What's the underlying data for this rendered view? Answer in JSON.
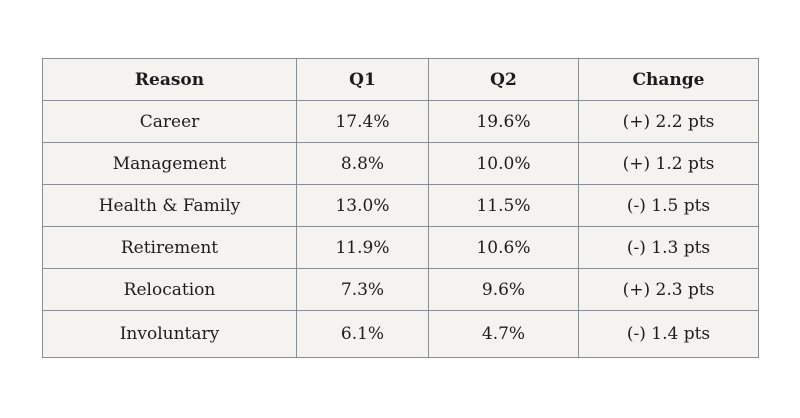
{
  "table": {
    "headers": [
      "Reason",
      "Q1",
      "Q2",
      "Change"
    ],
    "rows": [
      [
        "Career",
        "17.4%",
        "19.6%",
        "(+) 2.2 pts"
      ],
      [
        "Management",
        "8.8%",
        "10.0%",
        "(+) 1.2 pts"
      ],
      [
        "Health & Family",
        "13.0%",
        "11.5%",
        "(-) 1.5 pts"
      ],
      [
        "Retirement",
        "11.9%",
        "10.6%",
        "(-) 1.3 pts"
      ],
      [
        "Relocation",
        "7.3%",
        "9.6%",
        "(+) 2.3 pts"
      ],
      [
        "Involuntary",
        "6.1%",
        "4.7%",
        "(-) 1.4 pts"
      ]
    ]
  }
}
